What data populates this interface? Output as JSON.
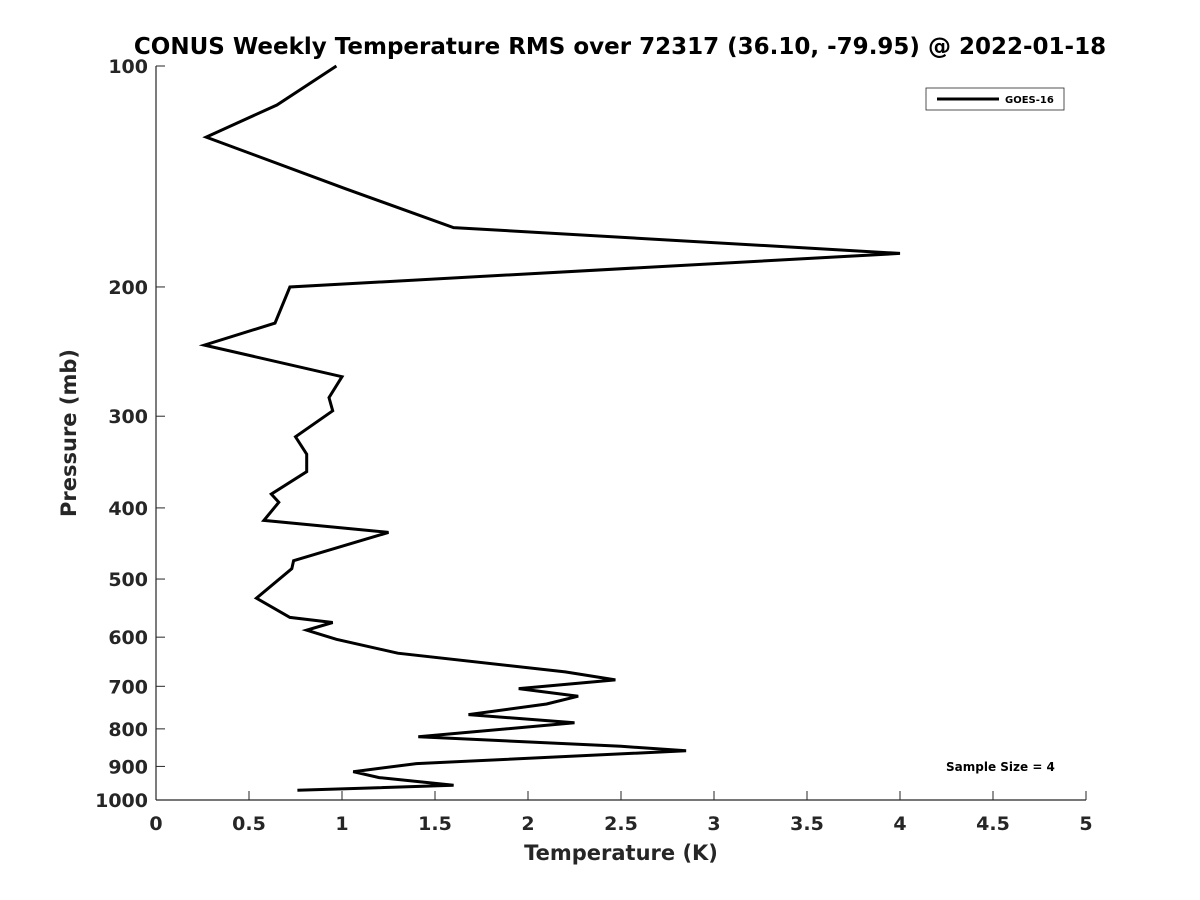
{
  "chart_data": {
    "type": "line",
    "title": "CONUS Weekly Temperature RMS over 72317 (36.10, -79.95) @ 2022-01-18",
    "xlabel": "Temperature (K)",
    "ylabel": "Pressure (mb)",
    "xlim": [
      0,
      5
    ],
    "ylim": [
      100,
      1000
    ],
    "y_scale": "log",
    "y_direction": "reversed",
    "x_ticks": [
      0,
      0.5,
      1,
      1.5,
      2,
      2.5,
      3,
      3.5,
      4,
      4.5,
      5
    ],
    "x_tick_labels": [
      "0",
      "0.5",
      "1",
      "1.5",
      "2",
      "2.5",
      "3",
      "3.5",
      "4",
      "4.5",
      "5"
    ],
    "y_ticks": [
      100,
      200,
      300,
      400,
      500,
      600,
      700,
      800,
      900,
      1000
    ],
    "y_tick_labels": [
      "100",
      "200",
      "300",
      "400",
      "500",
      "600",
      "700",
      "800",
      "900",
      "1000"
    ],
    "grid": false,
    "legend_position": "top-right",
    "annotation": "Sample Size = 4",
    "series": [
      {
        "name": "GOES-16",
        "color": "#000000",
        "x": [
          0.97,
          0.65,
          0.27,
          1.02,
          1.6,
          4.0,
          0.72,
          0.64,
          0.26,
          1.0,
          0.93,
          0.95,
          0.75,
          0.81,
          0.81,
          0.62,
          0.66,
          0.58,
          1.25,
          0.74,
          0.73,
          0.54,
          0.72,
          0.95,
          0.81,
          0.97,
          1.3,
          2.2,
          2.47,
          1.95,
          2.27,
          2.1,
          1.68,
          2.25,
          1.41,
          2.5,
          2.85,
          1.4,
          1.06,
          1.2,
          1.6,
          0.76
        ],
        "y": [
          100,
          113,
          125,
          147,
          166,
          180,
          200,
          224,
          240,
          265,
          283,
          295,
          320,
          338,
          357,
          383,
          393,
          416,
          432,
          472,
          484,
          531,
          564,
          573,
          587,
          604,
          631,
          669,
          686,
          705,
          722,
          740,
          765,
          785,
          820,
          845,
          857,
          892,
          915,
          932,
          955,
          970
        ]
      }
    ]
  }
}
